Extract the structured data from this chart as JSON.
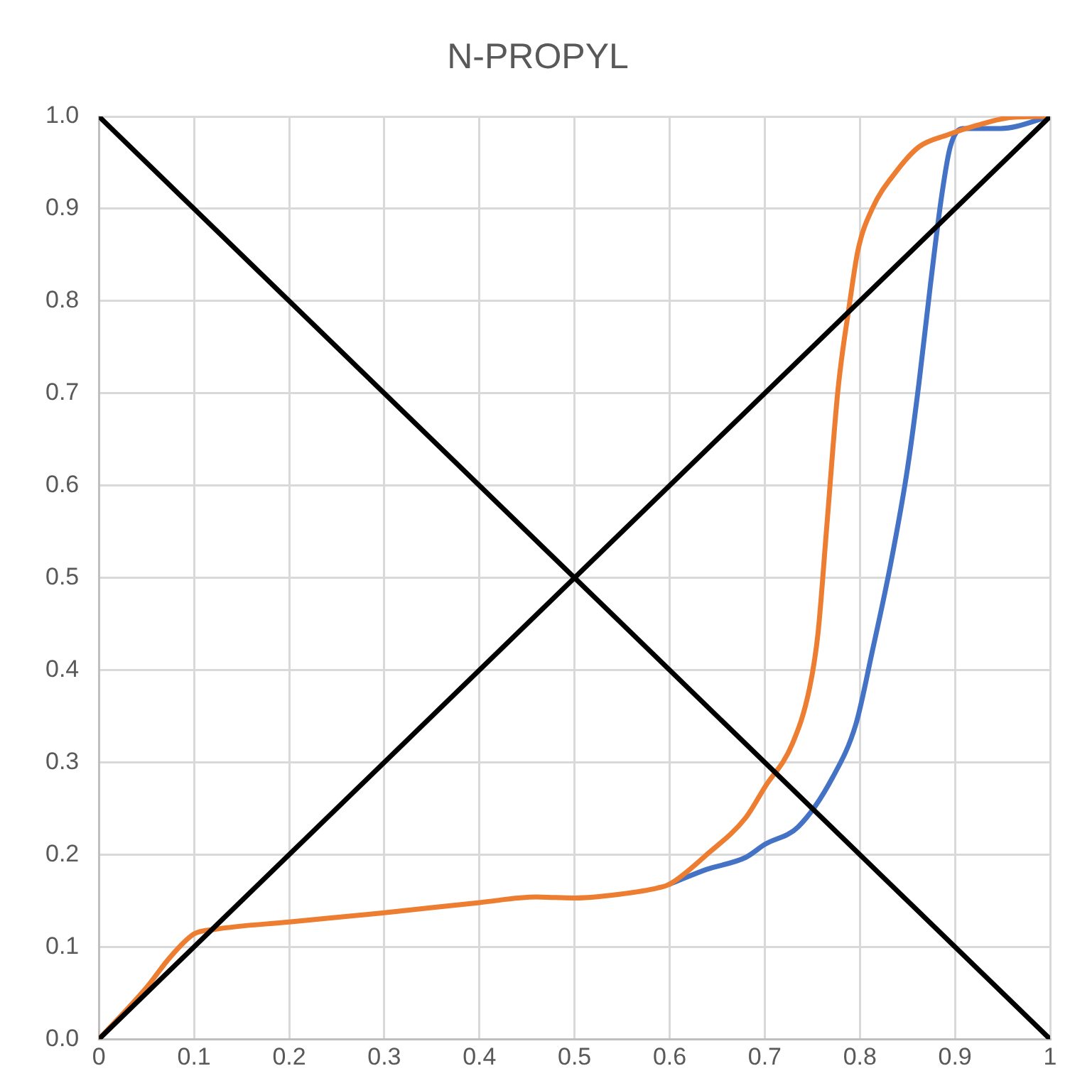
{
  "chart_data": {
    "type": "line",
    "title": "N-PROPYL",
    "xlim": [
      0,
      1
    ],
    "ylim": [
      0,
      1
    ],
    "xticks": [
      0,
      0.1,
      0.2,
      0.3,
      0.4,
      0.5,
      0.6,
      0.7,
      0.8,
      0.9,
      1
    ],
    "yticks": [
      {
        "value": 0,
        "label": "0.0"
      },
      0.1,
      0.2,
      0.3,
      0.4,
      0.5,
      0.6,
      0.7,
      0.8,
      0.9,
      {
        "value": 1,
        "label": "1.0"
      }
    ],
    "grid": true,
    "legend": false,
    "marker": "none",
    "line_style": "solid",
    "series": [
      {
        "color": "#4472c4",
        "x": [
          0.6,
          0.639,
          0.68,
          0.7,
          0.735,
          0.771,
          0.796,
          0.813,
          0.832,
          0.85,
          0.862,
          0.874,
          0.886,
          0.895,
          0.908,
          0.948,
          1
        ],
        "values": [
          0.168,
          0.184,
          0.197,
          0.211,
          0.23,
          0.283,
          0.342,
          0.42,
          0.513,
          0.618,
          0.71,
          0.816,
          0.914,
          0.967,
          0.987,
          0.987,
          1
        ]
      },
      {
        "color": "#ed7d31",
        "x": [
          0,
          0.05,
          0.075,
          0.1,
          0.122,
          0.2,
          0.3,
          0.4,
          0.46,
          0.5,
          0.547,
          0.588,
          0.6,
          0.639,
          0.68,
          0.7,
          0.729,
          0.747,
          0.756,
          0.765,
          0.777,
          0.789,
          0.798,
          0.813,
          0.838,
          0.862,
          0.892,
          0.922,
          0.96,
          1
        ],
        "values": [
          0,
          0.056,
          0.089,
          0.114,
          0.119,
          0.127,
          0.137,
          0.148,
          0.154,
          0.153,
          0.157,
          0.164,
          0.168,
          0.2,
          0.24,
          0.273,
          0.32,
          0.38,
          0.44,
          0.553,
          0.704,
          0.796,
          0.855,
          0.9,
          0.94,
          0.967,
          0.98,
          0.99,
          0.999,
          1
        ]
      },
      {
        "color": "#000000",
        "x": [
          0,
          1
        ],
        "values": [
          0,
          1
        ]
      },
      {
        "color": "#000000",
        "x": [
          0,
          1
        ],
        "values": [
          1,
          0
        ]
      }
    ]
  }
}
